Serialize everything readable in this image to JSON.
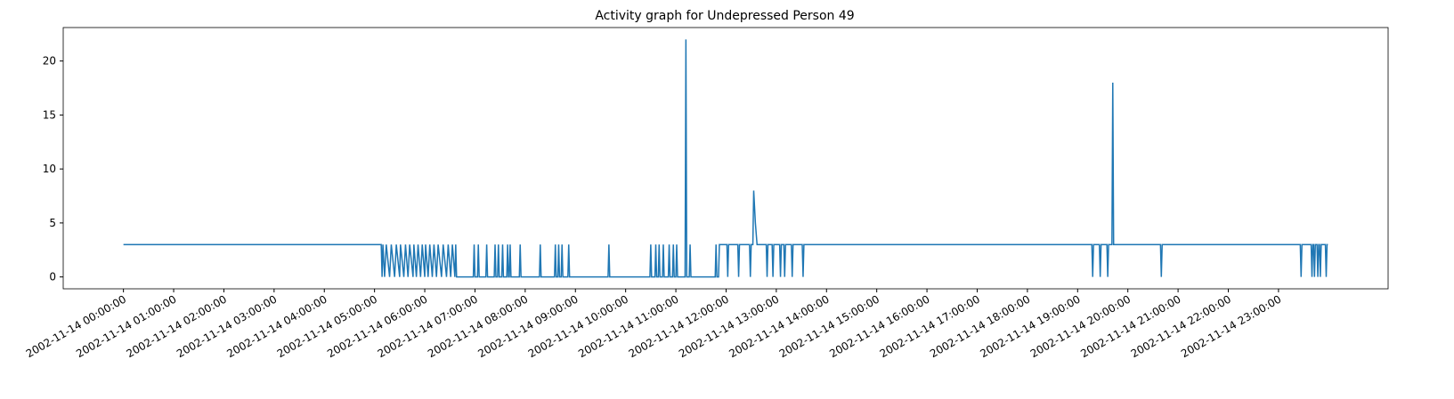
{
  "chart_data": {
    "type": "line",
    "title": "Activity graph for Undepressed Person 49",
    "color": "#1f77b4",
    "x": [
      "2002-11-14 00:00:00",
      "2002-11-14 05:08:00",
      "2002-11-14 05:09:00",
      "2002-11-14 05:10:00",
      "2002-11-14 05:12:00",
      "2002-11-14 05:14:00",
      "2002-11-14 05:18:00",
      "2002-11-14 05:20:00",
      "2002-11-14 05:24:00",
      "2002-11-14 05:26:00",
      "2002-11-14 05:30:00",
      "2002-11-14 05:31:00",
      "2002-11-14 05:35:00",
      "2002-11-14 05:37:00",
      "2002-11-14 05:40:00",
      "2002-11-14 05:42:00",
      "2002-11-14 05:46:00",
      "2002-11-14 05:47:00",
      "2002-11-14 05:50:00",
      "2002-11-14 05:52:00",
      "2002-11-14 05:55:00",
      "2002-11-14 05:57:00",
      "2002-11-14 06:00:00",
      "2002-11-14 06:01:00",
      "2002-11-14 06:04:00",
      "2002-11-14 06:06:00",
      "2002-11-14 06:09:00",
      "2002-11-14 06:11:00",
      "2002-11-14 06:14:00",
      "2002-11-14 06:16:00",
      "2002-11-14 06:20:00",
      "2002-11-14 06:22:00",
      "2002-11-14 06:26:00",
      "2002-11-14 06:28:00",
      "2002-11-14 06:31:00",
      "2002-11-14 06:33:00",
      "2002-11-14 06:36:00",
      "2002-11-14 06:37:00",
      "2002-11-14 06:38:00",
      "2002-11-14 06:58:00",
      "2002-11-14 06:59:00",
      "2002-11-14 07:00:00",
      "2002-11-14 07:03:00",
      "2002-11-14 07:04:00",
      "2002-11-14 07:05:00",
      "2002-11-14 07:13:00",
      "2002-11-14 07:14:00",
      "2002-11-14 07:15:00",
      "2002-11-14 07:23:00",
      "2002-11-14 07:24:00",
      "2002-11-14 07:25:00",
      "2002-11-14 07:27:00",
      "2002-11-14 07:28:00",
      "2002-11-14 07:29:00",
      "2002-11-14 07:32:00",
      "2002-11-14 07:33:00",
      "2002-11-14 07:34:00",
      "2002-11-14 07:38:00",
      "2002-11-14 07:39:00",
      "2002-11-14 07:40:00",
      "2002-11-14 07:41:00",
      "2002-11-14 07:42:00",
      "2002-11-14 07:43:00",
      "2002-11-14 07:53:00",
      "2002-11-14 07:54:00",
      "2002-11-14 07:55:00",
      "2002-11-14 08:17:00",
      "2002-11-14 08:18:00",
      "2002-11-14 08:19:00",
      "2002-11-14 08:35:00",
      "2002-11-14 08:36:00",
      "2002-11-14 08:37:00",
      "2002-11-14 08:39:00",
      "2002-11-14 08:40:00",
      "2002-11-14 08:41:00",
      "2002-11-14 08:43:00",
      "2002-11-14 08:44:00",
      "2002-11-14 08:45:00",
      "2002-11-14 08:51:00",
      "2002-11-14 08:52:00",
      "2002-11-14 08:53:00",
      "2002-11-14 09:39:00",
      "2002-11-14 09:40:00",
      "2002-11-14 09:41:00",
      "2002-11-14 10:29:00",
      "2002-11-14 10:30:00",
      "2002-11-14 10:31:00",
      "2002-11-14 10:35:00",
      "2002-11-14 10:36:00",
      "2002-11-14 10:37:00",
      "2002-11-14 10:39:00",
      "2002-11-14 10:40:00",
      "2002-11-14 10:41:00",
      "2002-11-14 10:44:00",
      "2002-11-14 10:45:00",
      "2002-11-14 10:46:00",
      "2002-11-14 10:51:00",
      "2002-11-14 10:52:00",
      "2002-11-14 10:53:00",
      "2002-11-14 10:56:00",
      "2002-11-14 10:57:00",
      "2002-11-14 10:58:00",
      "2002-11-14 11:00:00",
      "2002-11-14 11:01:00",
      "2002-11-14 11:02:00",
      "2002-11-14 11:11:00",
      "2002-11-14 11:12:00",
      "2002-11-14 11:13:00",
      "2002-11-14 11:16:00",
      "2002-11-14 11:17:00",
      "2002-11-14 11:18:00",
      "2002-11-14 11:47:00",
      "2002-11-14 11:48:00",
      "2002-11-14 11:49:00",
      "2002-11-14 11:51:00",
      "2002-11-14 11:52:00",
      "2002-11-14 12:01:00",
      "2002-11-14 12:02:00",
      "2002-11-14 12:03:00",
      "2002-11-14 12:14:00",
      "2002-11-14 12:15:00",
      "2002-11-14 12:16:00",
      "2002-11-14 12:28:00",
      "2002-11-14 12:29:00",
      "2002-11-14 12:30:00",
      "2002-11-14 12:32:00",
      "2002-11-14 12:33:00",
      "2002-11-14 12:35:00",
      "2002-11-14 12:37:00",
      "2002-11-14 12:48:00",
      "2002-11-14 12:49:00",
      "2002-11-14 12:50:00",
      "2002-11-14 12:55:00",
      "2002-11-14 12:56:00",
      "2002-11-14 12:57:00",
      "2002-11-14 13:04:00",
      "2002-11-14 13:05:00",
      "2002-11-14 13:06:00",
      "2002-11-14 13:09:00",
      "2002-11-14 13:10:00",
      "2002-11-14 13:11:00",
      "2002-11-14 13:18:00",
      "2002-11-14 13:19:00",
      "2002-11-14 13:20:00",
      "2002-11-14 13:31:00",
      "2002-11-14 13:32:00",
      "2002-11-14 13:33:00",
      "2002-11-14 19:17:00",
      "2002-11-14 19:18:00",
      "2002-11-14 19:19:00",
      "2002-11-14 19:26:00",
      "2002-11-14 19:27:00",
      "2002-11-14 19:28:00",
      "2002-11-14 19:35:00",
      "2002-11-14 19:36:00",
      "2002-11-14 19:37:00",
      "2002-11-14 19:41:00",
      "2002-11-14 19:42:00",
      "2002-11-14 19:43:00",
      "2002-11-14 20:39:00",
      "2002-11-14 20:40:00",
      "2002-11-14 20:41:00",
      "2002-11-14 23:26:00",
      "2002-11-14 23:27:00",
      "2002-11-14 23:28:00",
      "2002-11-14 23:39:00",
      "2002-11-14 23:40:00",
      "2002-11-14 23:41:00",
      "2002-11-14 23:42:00",
      "2002-11-14 23:43:00",
      "2002-11-14 23:44:00",
      "2002-11-14 23:46:00",
      "2002-11-14 23:47:00",
      "2002-11-14 23:48:00",
      "2002-11-14 23:49:00",
      "2002-11-14 23:50:00",
      "2002-11-14 23:51:00",
      "2002-11-14 23:56:00",
      "2002-11-14 23:57:00",
      "2002-11-14 23:58:00",
      "2002-11-14 23:59:00"
    ],
    "values": [
      3,
      3,
      0,
      3,
      0,
      3,
      0,
      3,
      0,
      3,
      0,
      3,
      0,
      3,
      0,
      3,
      0,
      3,
      0,
      3,
      0,
      3,
      0,
      3,
      0,
      3,
      0,
      3,
      0,
      3,
      0,
      3,
      0,
      3,
      0,
      3,
      0,
      3,
      0,
      0,
      3,
      0,
      0,
      3,
      0,
      0,
      3,
      0,
      0,
      3,
      0,
      0,
      3,
      0,
      0,
      3,
      0,
      0,
      3,
      0,
      0,
      3,
      0,
      0,
      3,
      0,
      0,
      3,
      0,
      0,
      3,
      0,
      0,
      3,
      0,
      0,
      3,
      0,
      0,
      3,
      0,
      0,
      3,
      0,
      0,
      3,
      0,
      0,
      3,
      0,
      0,
      3,
      0,
      0,
      3,
      0,
      0,
      3,
      0,
      0,
      3,
      0,
      0,
      3,
      0,
      0,
      22,
      0,
      0,
      3,
      0,
      0,
      3,
      0,
      0,
      3,
      3,
      0,
      3,
      3,
      0,
      3,
      3,
      0,
      3,
      3,
      8,
      5,
      3,
      3,
      0,
      3,
      3,
      0,
      3,
      3,
      0,
      3,
      3,
      0,
      3,
      3,
      0,
      3,
      3,
      0,
      3,
      3,
      0,
      3,
      3,
      0,
      3,
      3,
      0,
      3,
      3,
      18,
      3,
      3,
      0,
      3,
      3,
      0,
      3,
      3,
      0,
      3,
      3,
      0,
      3,
      3,
      0,
      3,
      3,
      0,
      3,
      3,
      0,
      3,
      3
    ],
    "xticks": [
      "2002-11-14 00:00:00",
      "2002-11-14 01:00:00",
      "2002-11-14 02:00:00",
      "2002-11-14 03:00:00",
      "2002-11-14 04:00:00",
      "2002-11-14 05:00:00",
      "2002-11-14 06:00:00",
      "2002-11-14 07:00:00",
      "2002-11-14 08:00:00",
      "2002-11-14 09:00:00",
      "2002-11-14 10:00:00",
      "2002-11-14 11:00:00",
      "2002-11-14 12:00:00",
      "2002-11-14 13:00:00",
      "2002-11-14 14:00:00",
      "2002-11-14 15:00:00",
      "2002-11-14 16:00:00",
      "2002-11-14 17:00:00",
      "2002-11-14 18:00:00",
      "2002-11-14 19:00:00",
      "2002-11-14 20:00:00",
      "2002-11-14 21:00:00",
      "2002-11-14 22:00:00",
      "2002-11-14 23:00:00"
    ],
    "ylim": [
      -1.1,
      23.1
    ],
    "yticks": [
      0,
      5,
      10,
      15,
      20
    ]
  }
}
